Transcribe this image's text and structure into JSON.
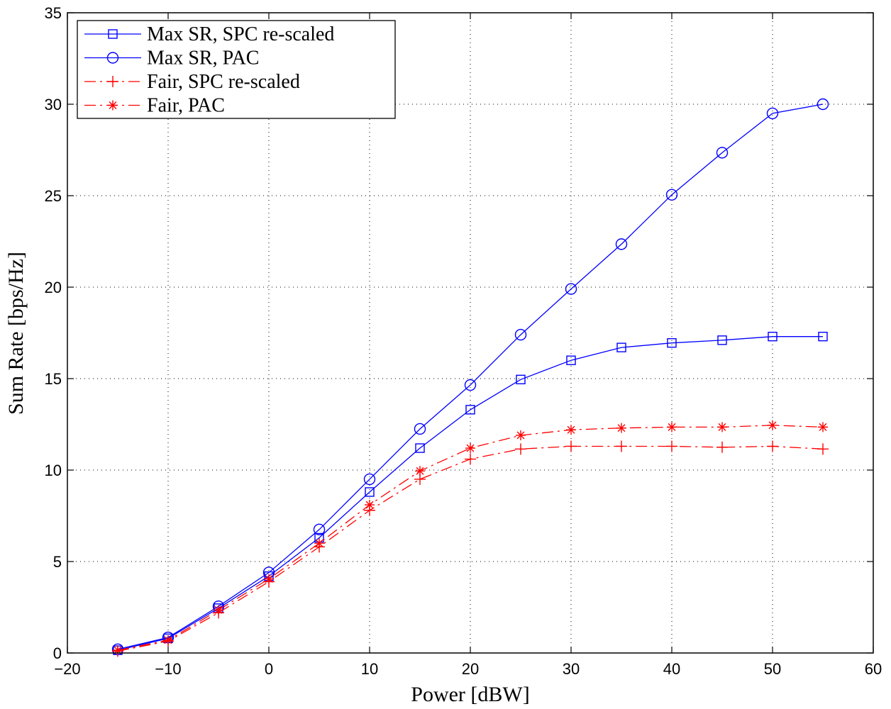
{
  "chart_data": {
    "type": "line",
    "title": "",
    "xlabel": "Power [dBW]",
    "ylabel": "Sum Rate [bps/Hz]",
    "xlim": [
      -20,
      60
    ],
    "ylim": [
      0,
      35
    ],
    "xticks": [
      -20,
      -10,
      0,
      10,
      20,
      30,
      40,
      50,
      60
    ],
    "yticks": [
      0,
      5,
      10,
      15,
      20,
      25,
      30,
      35
    ],
    "xtick_labels": [
      "−20",
      "−10",
      "0",
      "10",
      "20",
      "30",
      "40",
      "50",
      "60"
    ],
    "ytick_labels": [
      "0",
      "5",
      "10",
      "15",
      "20",
      "25",
      "30",
      "35"
    ],
    "grid": true,
    "legend_position": "top-left",
    "x": [
      -15,
      -10,
      -5,
      0,
      5,
      10,
      15,
      20,
      25,
      30,
      35,
      40,
      45,
      50,
      55
    ],
    "series": [
      {
        "name": "Max SR, SPC re-scaled",
        "color": "#0000ff",
        "line_style": "solid",
        "marker": "square",
        "values": [
          0.15,
          0.8,
          2.45,
          4.2,
          6.3,
          8.8,
          11.2,
          13.3,
          14.95,
          16.0,
          16.7,
          16.95,
          17.1,
          17.3,
          17.3
        ]
      },
      {
        "name": "Max SR, PAC",
        "color": "#0000ff",
        "line_style": "solid",
        "marker": "circle",
        "values": [
          0.2,
          0.85,
          2.55,
          4.4,
          6.75,
          9.5,
          12.25,
          14.65,
          17.4,
          19.9,
          22.35,
          25.05,
          27.35,
          29.5,
          30.0
        ]
      },
      {
        "name": "Fair, SPC re-scaled",
        "color": "#ff0000",
        "line_style": "dashdot",
        "marker": "plus",
        "values": [
          0.1,
          0.65,
          2.2,
          3.9,
          5.8,
          7.8,
          9.5,
          10.6,
          11.15,
          11.3,
          11.3,
          11.3,
          11.25,
          11.3,
          11.15
        ]
      },
      {
        "name": "Fair, PAC",
        "color": "#ff0000",
        "line_style": "dashdot",
        "marker": "star",
        "values": [
          0.15,
          0.7,
          2.35,
          4.05,
          6.0,
          8.1,
          9.95,
          11.2,
          11.9,
          12.2,
          12.3,
          12.35,
          12.35,
          12.45,
          12.35
        ]
      }
    ]
  }
}
